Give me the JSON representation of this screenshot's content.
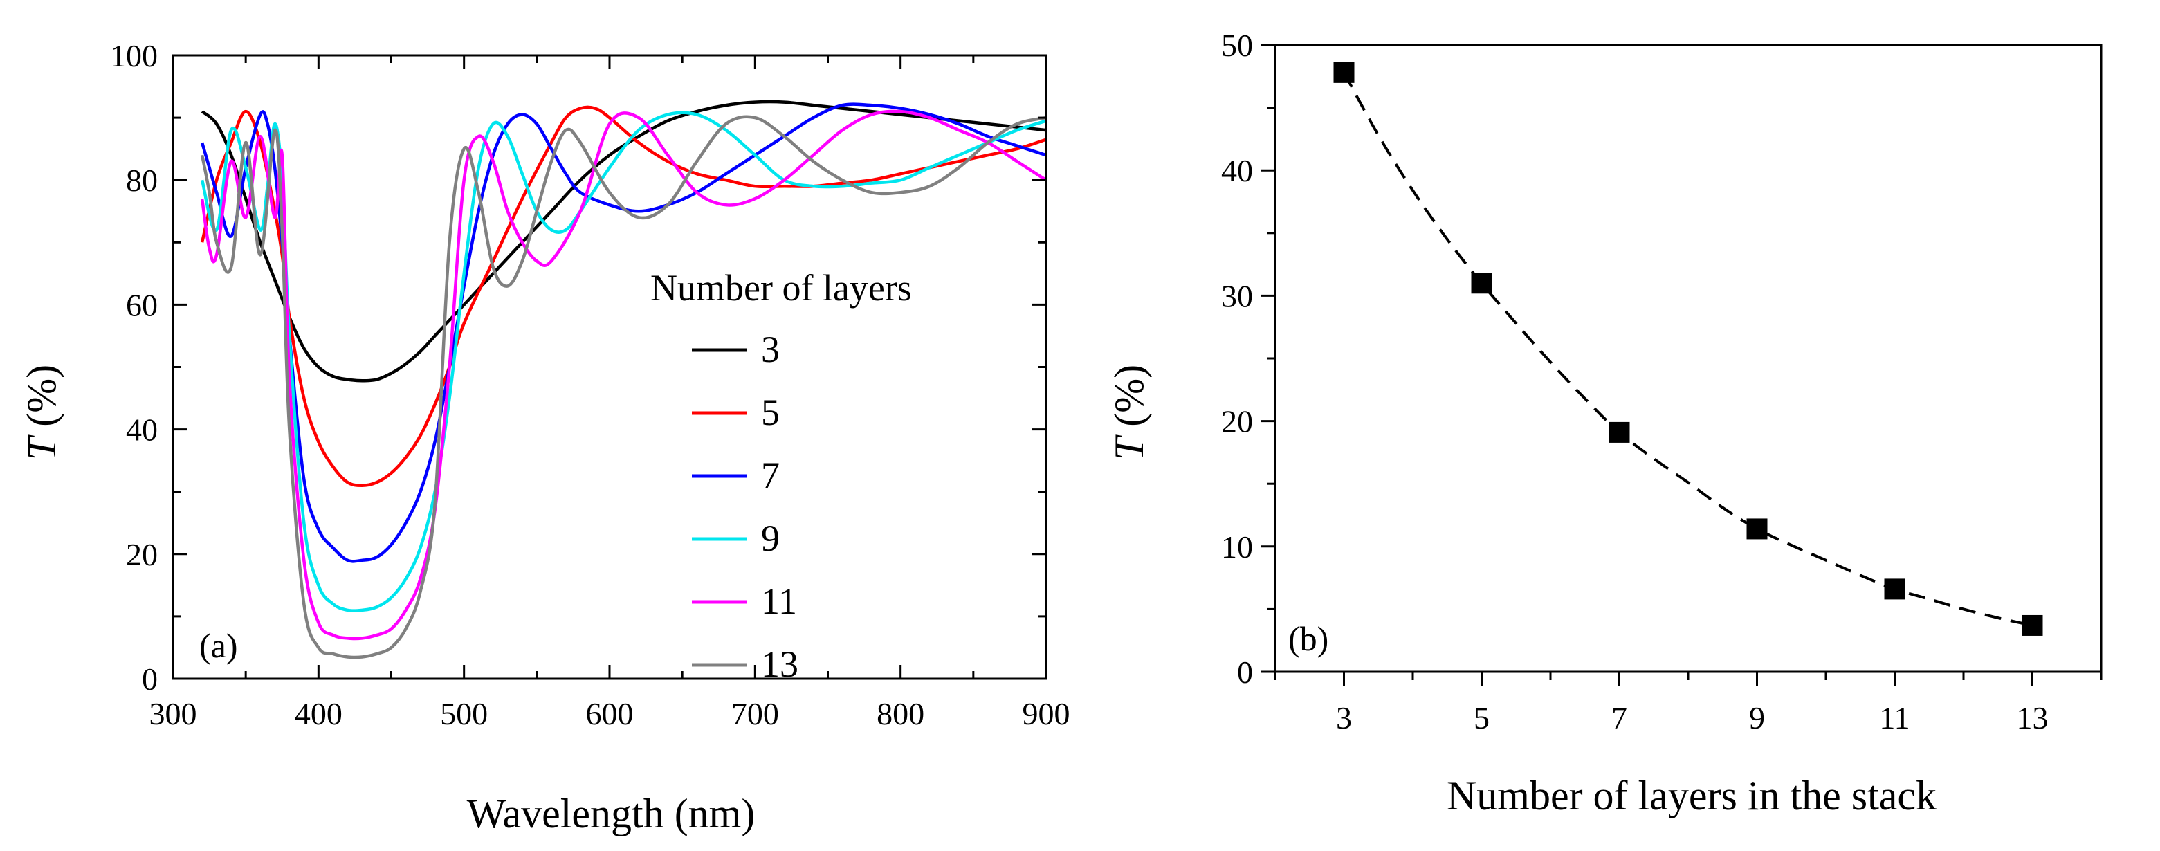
{
  "chart_data": [
    {
      "type": "line",
      "panel_label": "(a)",
      "xlabel": "Wavelength (nm)",
      "ylabel_italic": "T",
      "ylabel_rest": " (%)",
      "xlim": [
        300,
        900
      ],
      "ylim": [
        0,
        100
      ],
      "xticks": [
        300,
        400,
        500,
        600,
        700,
        800,
        900
      ],
      "yticks": [
        0,
        20,
        40,
        60,
        80,
        100
      ],
      "legend_title": "Number of layers",
      "legend_position": "right",
      "series": [
        {
          "name": "3",
          "color": "#000000",
          "x": [
            320,
            330,
            340,
            350,
            360,
            370,
            380,
            390,
            400,
            410,
            420,
            430,
            440,
            450,
            460,
            470,
            480,
            490,
            500,
            520,
            540,
            560,
            580,
            600,
            620,
            640,
            660,
            680,
            700,
            720,
            740,
            760,
            780,
            800,
            820,
            840,
            860,
            880,
            900
          ],
          "y": [
            91,
            89,
            84,
            77,
            70,
            64,
            58,
            53,
            50,
            48.5,
            48,
            47.8,
            48,
            49,
            50.5,
            52.5,
            55,
            57.5,
            60,
            65,
            70,
            75,
            80,
            84,
            87,
            89.5,
            91,
            92,
            92.5,
            92.5,
            92,
            91.5,
            91,
            90.5,
            90,
            89.5,
            89,
            88.5,
            88
          ]
        },
        {
          "name": "5",
          "color": "#ff0000",
          "x": [
            320,
            330,
            340,
            350,
            360,
            370,
            375,
            380,
            390,
            400,
            410,
            420,
            430,
            440,
            450,
            460,
            470,
            480,
            490,
            500,
            520,
            540,
            560,
            570,
            580,
            590,
            600,
            620,
            640,
            660,
            680,
            700,
            720,
            740,
            760,
            780,
            800,
            820,
            840,
            860,
            880,
            900
          ],
          "y": [
            70,
            80,
            86,
            91,
            86,
            75,
            68,
            58,
            45,
            38,
            34,
            31.5,
            31,
            31.5,
            33,
            35.5,
            39,
            44,
            50,
            57,
            67,
            77,
            86,
            90,
            91.5,
            91.5,
            90,
            86,
            83,
            81,
            80,
            79,
            79,
            79,
            79.5,
            80,
            81,
            82,
            83,
            84,
            85,
            86.5
          ]
        },
        {
          "name": "7",
          "color": "#0000ff",
          "x": [
            320,
            325,
            330,
            340,
            350,
            360,
            365,
            370,
            375,
            380,
            390,
            400,
            410,
            420,
            430,
            440,
            450,
            460,
            470,
            480,
            490,
            500,
            510,
            520,
            530,
            540,
            550,
            560,
            570,
            580,
            600,
            620,
            640,
            660,
            680,
            700,
            720,
            740,
            760,
            780,
            800,
            820,
            840,
            860,
            880,
            900
          ],
          "y": [
            86,
            82,
            78,
            71,
            82,
            90.5,
            89,
            82,
            70,
            55,
            32,
            24,
            21,
            19,
            19,
            19.5,
            21.5,
            25,
            30,
            38,
            50,
            63,
            75,
            84,
            89,
            90.5,
            89,
            85,
            81,
            78,
            76,
            75,
            76,
            78,
            81,
            84,
            87,
            90,
            92,
            92,
            91.5,
            90.5,
            89,
            87,
            85.5,
            84
          ]
        },
        {
          "name": "9",
          "color": "#00e5ee",
          "x": [
            320,
            330,
            340,
            350,
            360,
            365,
            370,
            375,
            380,
            390,
            400,
            410,
            420,
            430,
            440,
            450,
            460,
            470,
            480,
            490,
            500,
            510,
            520,
            530,
            540,
            550,
            560,
            570,
            580,
            600,
            620,
            640,
            660,
            680,
            700,
            720,
            740,
            760,
            780,
            800,
            820,
            840,
            860,
            880,
            900
          ],
          "y": [
            80,
            72,
            88,
            82,
            72,
            79,
            89,
            80,
            55,
            25,
            15,
            12,
            11,
            11,
            11.5,
            13,
            16,
            21,
            30,
            45,
            65,
            82,
            89,
            87,
            81,
            75,
            72,
            72,
            75,
            82,
            88,
            90.5,
            90.5,
            88,
            84,
            80,
            79,
            79,
            79.5,
            80,
            82,
            84,
            86,
            88,
            89.5
          ]
        },
        {
          "name": "11",
          "color": "#ff00ff",
          "x": [
            320,
            325,
            330,
            340,
            350,
            360,
            370,
            375,
            380,
            390,
            400,
            410,
            420,
            430,
            440,
            450,
            460,
            470,
            480,
            490,
            500,
            510,
            520,
            530,
            540,
            550,
            560,
            580,
            600,
            620,
            640,
            660,
            680,
            700,
            720,
            740,
            760,
            780,
            800,
            820,
            840,
            860,
            880,
            900
          ],
          "y": [
            77,
            69,
            68,
            83,
            74,
            87,
            74,
            84,
            48,
            19,
            9,
            7,
            6.5,
            6.5,
            7,
            8,
            11,
            16,
            27,
            50,
            80,
            87,
            83,
            75,
            70,
            67,
            67,
            75,
            89,
            90,
            84,
            78,
            76,
            77,
            80,
            84,
            88,
            90.5,
            91,
            90,
            88,
            86,
            83,
            80
          ]
        },
        {
          "name": "13",
          "color": "#808080",
          "x": [
            320,
            325,
            330,
            340,
            350,
            360,
            370,
            375,
            380,
            390,
            400,
            410,
            420,
            430,
            440,
            450,
            460,
            470,
            480,
            490,
            500,
            510,
            520,
            530,
            540,
            550,
            560,
            570,
            580,
            600,
            620,
            640,
            660,
            680,
            700,
            720,
            740,
            760,
            780,
            800,
            820,
            840,
            860,
            880,
            900
          ],
          "y": [
            84,
            78,
            70,
            66,
            86,
            68,
            88,
            72,
            40,
            12,
            5,
            4,
            3.5,
            3.5,
            4,
            5,
            8,
            14,
            28,
            70,
            85,
            78,
            66,
            63,
            67,
            75,
            83,
            88,
            86,
            78,
            74,
            76,
            83,
            89,
            90,
            87,
            83,
            80,
            78,
            78,
            79,
            82,
            86,
            89,
            90
          ]
        }
      ]
    },
    {
      "type": "scatter",
      "panel_label": "(b)",
      "xlabel": "Number of layers in the stack",
      "ylabel_italic": "T",
      "ylabel_rest": " (%)",
      "xlim": [
        2,
        14
      ],
      "ylim": [
        0,
        50
      ],
      "xticks": [
        3,
        5,
        7,
        9,
        11,
        13
      ],
      "yticks": [
        0,
        10,
        20,
        30,
        40,
        50
      ],
      "x": [
        3,
        5,
        7,
        9,
        11,
        13
      ],
      "y": [
        47.8,
        31,
        19.1,
        11.4,
        6.6,
        3.7
      ],
      "fit_line": "dashed",
      "fit_x": [
        3,
        3.5,
        4,
        4.5,
        5,
        5.5,
        6,
        6.5,
        7,
        7.5,
        8,
        8.5,
        9,
        9.5,
        10,
        10.5,
        11,
        11.5,
        12,
        12.5,
        13
      ],
      "fit_y": [
        47.8,
        42.8,
        38.4,
        34.5,
        31,
        27.8,
        24.7,
        21.8,
        19.1,
        17,
        15.1,
        13.1,
        11.4,
        10.1,
        8.9,
        7.7,
        6.6,
        5.8,
        5,
        4.3,
        3.7
      ]
    }
  ]
}
